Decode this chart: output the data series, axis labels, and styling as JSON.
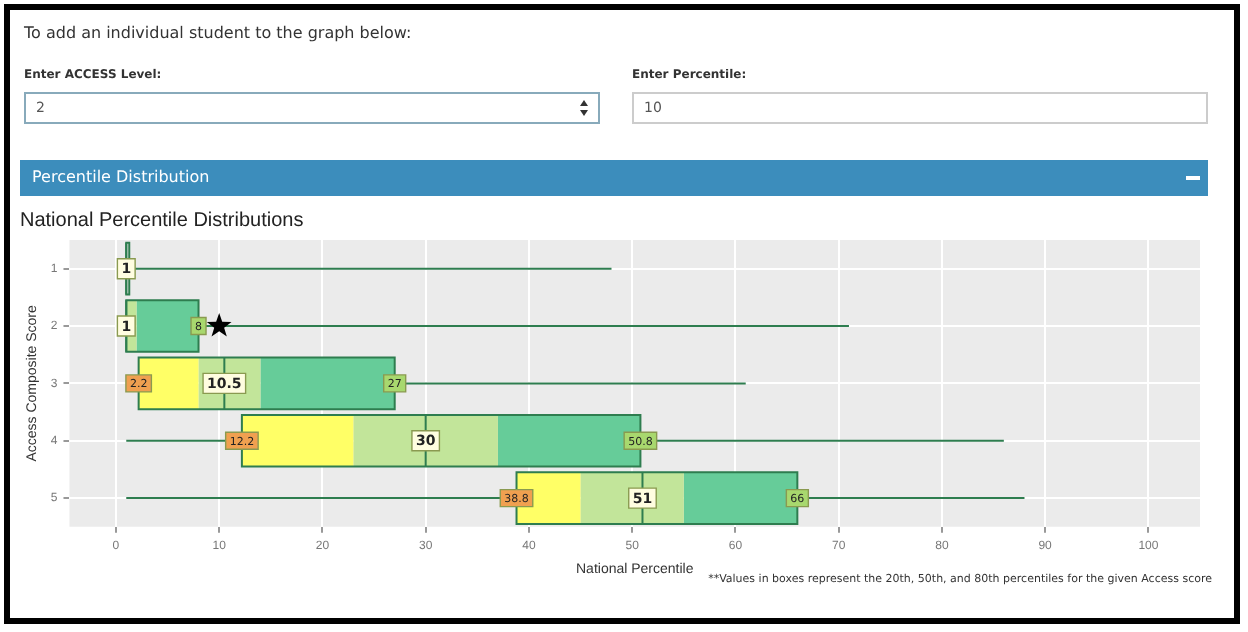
{
  "chart_data": {
    "type": "bar",
    "orientation": "horizontal",
    "title": "National Percentile Distributions",
    "xlabel": "National Percentile",
    "ylabel": "Access Composite Score",
    "categories": [
      "1",
      "2",
      "3",
      "4",
      "5"
    ],
    "series": [
      {
        "color": "#ffff66",
        "base": [
          null,
          null,
          2.2,
          12.2,
          38.8
        ],
        "values": [
          null,
          null,
          5.8,
          10.8,
          6.2
        ]
      },
      {
        "color": "#c2e59a",
        "base": [
          null,
          1,
          8,
          23,
          45
        ],
        "values": [
          null,
          1,
          6,
          14,
          10
        ]
      },
      {
        "color": "#66cc99",
        "base": [
          null,
          2,
          14,
          37,
          55
        ],
        "values": [
          null,
          6,
          13,
          13.8,
          11
        ]
      },
      {
        "type": "box",
        "color": "#2e7d4f",
        "boxes": [
          {
            "low": 1,
            "q1": 1,
            "median": 1,
            "q3": 1,
            "high": 48
          },
          {
            "low": 1,
            "q1": 1,
            "median": 1,
            "q3": 8,
            "high": 71
          },
          {
            "low": 2.2,
            "q1": 2.2,
            "median": 10.5,
            "q3": 27,
            "high": 61
          },
          {
            "low": 1,
            "q1": 12.2,
            "median": 30,
            "q3": 50.8,
            "high": 86
          },
          {
            "low": 1,
            "q1": 38.8,
            "median": 51,
            "q3": 66,
            "high": 88
          }
        ]
      },
      {
        "type": "scatter",
        "marker": "star",
        "color": "#000000",
        "x": [
          "2"
        ],
        "values": [
          10
        ]
      }
    ],
    "xlim": [
      -4.5,
      105
    ],
    "xticks": [
      0,
      10,
      20,
      30,
      40,
      50,
      60,
      70,
      80,
      90,
      100
    ],
    "grid": true,
    "legend": false,
    "annotations": [
      "To add an individual student to the graph below:",
      "Enter ACCESS Level:",
      "2",
      "Enter Percentile:",
      "10",
      "Percentile Distribution",
      "**Values in boxes represent the 20th, 50th, and 80th percentiles for the given Access score",
      {
        "text": "1",
        "x": 1,
        "y": "1"
      },
      {
        "text": "8",
        "x": 8,
        "y": "2"
      },
      {
        "text": "1",
        "x": 1,
        "y": "2"
      },
      {
        "text": "2.2",
        "x": 2.2,
        "y": "3"
      },
      {
        "text": "27",
        "x": 27,
        "y": "3"
      },
      {
        "text": "10.5",
        "x": 10.5,
        "y": "3"
      },
      {
        "text": "12.2",
        "x": 12.2,
        "y": "4"
      },
      {
        "text": "50.8",
        "x": 50.8,
        "y": "4"
      },
      {
        "text": "30",
        "x": 30,
        "y": "4"
      },
      {
        "text": "38.8",
        "x": 38.8,
        "y": "5"
      },
      {
        "text": "66",
        "x": 66,
        "y": "5"
      },
      {
        "text": "51",
        "x": 51,
        "y": "5"
      }
    ]
  }
}
